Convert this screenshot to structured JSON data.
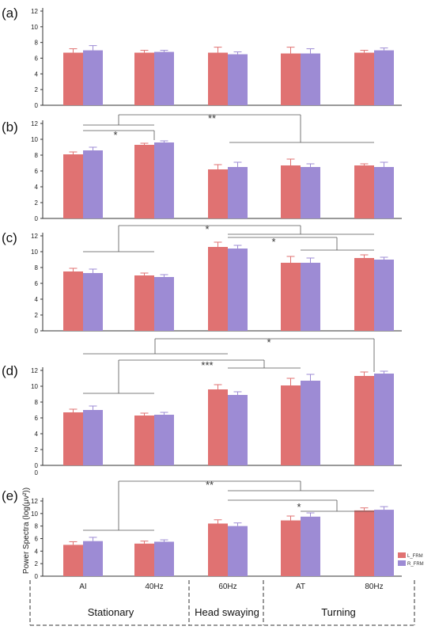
{
  "colors": {
    "L_FRM": "#e07272",
    "R_FRM": "#9d8bd4",
    "axis": "#333333",
    "bracket": "#555555"
  },
  "legend": [
    "L_FRM",
    "R_FRM"
  ],
  "categories": [
    "AI",
    "40Hz",
    "60Hz",
    "AT",
    "80Hz"
  ],
  "groups": [
    {
      "label": "Stationary",
      "categories": [
        "AI",
        "40Hz"
      ]
    },
    {
      "label": "Head swaying",
      "categories": [
        "60Hz"
      ]
    },
    {
      "label": "Turning",
      "categories": [
        "AT",
        "80Hz"
      ]
    }
  ],
  "ylabel_shared": "Power Spectra (log(μv²))",
  "chart_data": [
    {
      "type": "bar",
      "panel": "(a)",
      "ylim": [
        0,
        12
      ],
      "yticks": [
        0,
        2,
        4,
        6,
        8,
        10,
        12
      ],
      "categories": [
        "AI",
        "40Hz",
        "60Hz",
        "AT",
        "80Hz"
      ],
      "series": [
        {
          "name": "L_FRM",
          "values": [
            6.7,
            6.7,
            6.7,
            6.6,
            6.7
          ],
          "errors": [
            0.5,
            0.3,
            0.7,
            0.8,
            0.3
          ]
        },
        {
          "name": "R_FRM",
          "values": [
            7.0,
            6.8,
            6.5,
            6.6,
            7.0
          ],
          "errors": [
            0.6,
            0.2,
            0.3,
            0.6,
            0.3
          ]
        }
      ],
      "annotations": []
    },
    {
      "type": "bar",
      "panel": "(b)",
      "ylim": [
        0,
        12
      ],
      "yticks": [
        0,
        2,
        4,
        6,
        8,
        10,
        12
      ],
      "categories": [
        "AI",
        "40Hz",
        "60Hz",
        "AT",
        "80Hz"
      ],
      "series": [
        {
          "name": "L_FRM",
          "values": [
            8.1,
            9.3,
            6.2,
            6.7,
            6.7
          ],
          "errors": [
            0.3,
            0.2,
            0.6,
            0.8,
            0.2
          ]
        },
        {
          "name": "R_FRM",
          "values": [
            8.6,
            9.6,
            6.5,
            6.5,
            6.5
          ],
          "errors": [
            0.4,
            0.2,
            0.6,
            0.4,
            0.6
          ]
        }
      ],
      "annotations": [
        {
          "text": "*",
          "from": 0,
          "to": 1
        },
        {
          "text": "**",
          "from": [
            0,
            1
          ],
          "to": [
            2,
            3,
            4
          ]
        }
      ]
    },
    {
      "type": "bar",
      "panel": "(c)",
      "ylim": [
        0,
        12
      ],
      "yticks": [
        0,
        2,
        4,
        6,
        8,
        10,
        12
      ],
      "categories": [
        "AI",
        "40Hz",
        "60Hz",
        "AT",
        "80Hz"
      ],
      "series": [
        {
          "name": "L_FRM",
          "values": [
            7.5,
            7.0,
            10.6,
            8.6,
            9.2
          ],
          "errors": [
            0.4,
            0.3,
            0.6,
            0.8,
            0.4
          ]
        },
        {
          "name": "R_FRM",
          "values": [
            7.3,
            6.8,
            10.4,
            8.6,
            9.0
          ],
          "errors": [
            0.5,
            0.3,
            0.4,
            0.6,
            0.3
          ]
        }
      ],
      "annotations": [
        {
          "text": "*",
          "from": [
            0,
            1
          ],
          "to": [
            2,
            3,
            4
          ]
        },
        {
          "text": "*",
          "from": 2,
          "to": [
            3,
            4
          ]
        }
      ]
    },
    {
      "type": "bar",
      "panel": "(d)",
      "ylim": [
        0,
        12
      ],
      "yticks": [
        0,
        2,
        4,
        6,
        8,
        10,
        12
      ],
      "categories": [
        "AI",
        "40Hz",
        "60Hz",
        "AT",
        "80Hz"
      ],
      "series": [
        {
          "name": "L_FRM",
          "values": [
            6.7,
            6.3,
            9.6,
            10.1,
            11.3
          ],
          "errors": [
            0.4,
            0.3,
            0.6,
            0.9,
            0.5
          ]
        },
        {
          "name": "R_FRM",
          "values": [
            7.0,
            6.4,
            8.9,
            10.7,
            11.6
          ],
          "errors": [
            0.5,
            0.3,
            0.4,
            0.8,
            0.3
          ]
        }
      ],
      "annotations": [
        {
          "text": "***",
          "from": [
            0,
            1
          ],
          "to": [
            2,
            3,
            4
          ]
        },
        {
          "text": "*",
          "from": [
            0,
            1,
            2
          ],
          "to": 4
        }
      ]
    },
    {
      "type": "bar",
      "panel": "(e)",
      "ylim": [
        0,
        12
      ],
      "yticks": [
        0,
        2,
        4,
        6,
        8,
        10,
        12
      ],
      "ylabel": "Power Spectra (log(μv²))",
      "categories": [
        "AI",
        "40Hz",
        "60Hz",
        "AT",
        "80Hz"
      ],
      "series": [
        {
          "name": "L_FRM",
          "values": [
            5.0,
            5.2,
            8.4,
            8.9,
            10.5
          ],
          "errors": [
            0.5,
            0.4,
            0.6,
            0.7,
            0.4
          ]
        },
        {
          "name": "R_FRM",
          "values": [
            5.6,
            5.5,
            8.0,
            9.5,
            10.6
          ],
          "errors": [
            0.6,
            0.3,
            0.5,
            0.6,
            0.5
          ]
        }
      ],
      "annotations": [
        {
          "text": "**",
          "from": [
            0,
            1
          ],
          "to": [
            2,
            3,
            4
          ]
        },
        {
          "text": "*",
          "from": 2,
          "to": [
            3,
            4
          ]
        }
      ]
    }
  ]
}
